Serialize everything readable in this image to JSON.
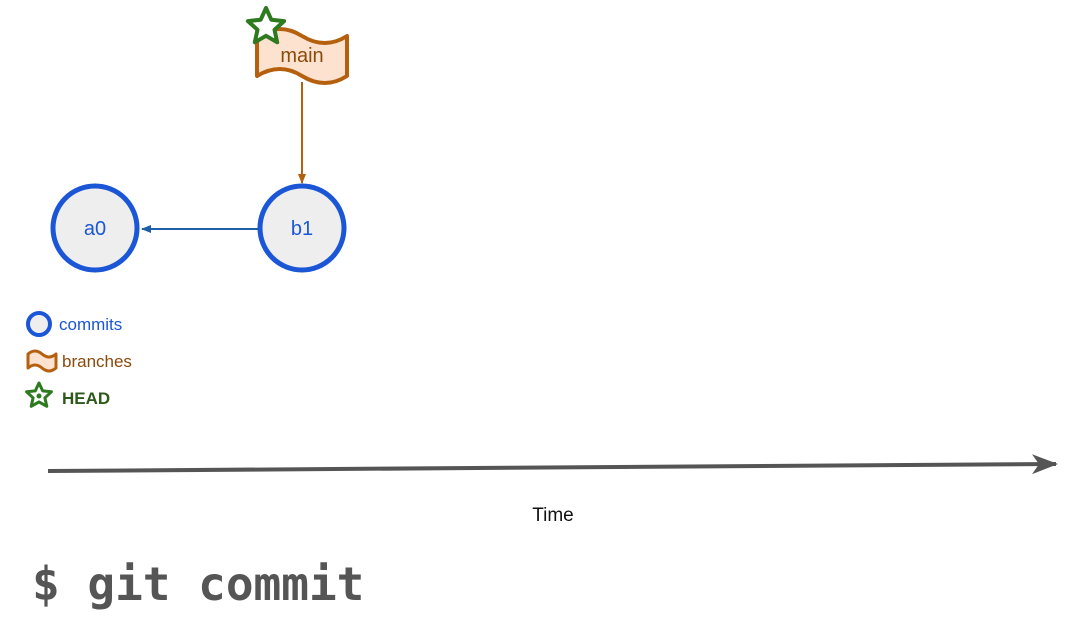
{
  "diagram": {
    "commits": [
      {
        "id": "a0"
      },
      {
        "id": "b1"
      }
    ],
    "branch": {
      "label": "main"
    },
    "legend": {
      "commits": "commits",
      "branches": "branches",
      "head": "HEAD"
    },
    "time_axis": {
      "label": "Time"
    },
    "command": "$ git commit"
  },
  "colors": {
    "commit_stroke": "#1a56d6",
    "commit_fill": "#eeeeee",
    "commit_text": "#1a56d6",
    "edge": "#1f5fa8",
    "branch_stroke": "#b5600e",
    "branch_fill": "#fde3cf",
    "branch_text": "#8a4a0b",
    "head_stroke": "#2d7a1f",
    "head_fill": "#5a9e3c",
    "head_text": "#2d5a1a",
    "axis": "#555555",
    "command_text": "#555555"
  }
}
